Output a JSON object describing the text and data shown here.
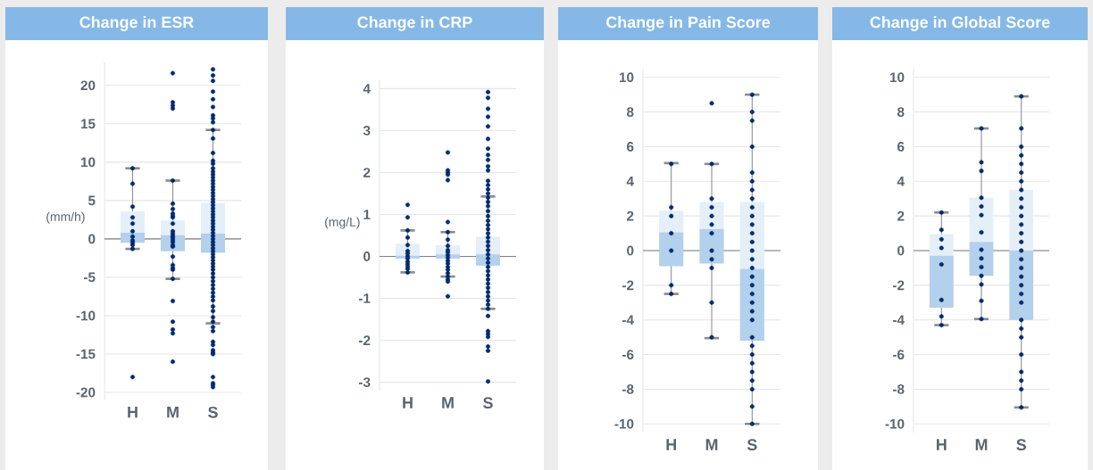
{
  "chart_data": [
    {
      "type": "box",
      "title": "Change in ESR",
      "ylabel": "(mm/h)",
      "categories": [
        "H",
        "M",
        "S"
      ],
      "color": "#b3d0ec",
      "grid": "y",
      "ylim": [
        -21,
        23
      ],
      "yticks": [
        -20,
        -15,
        -10,
        -5,
        0,
        5,
        10,
        15,
        20
      ],
      "boxes": [
        {
          "low": -1.3,
          "q1": -0.5,
          "median": 0.8,
          "q3": 3.6,
          "high": 9.2
        },
        {
          "low": -5.2,
          "q1": -1.6,
          "median": 0.5,
          "q3": 2.4,
          "high": 7.6
        },
        {
          "low": -11.0,
          "q1": -1.8,
          "median": 0.7,
          "q3": 4.7,
          "high": 14.2
        }
      ],
      "ref_lines": [
        {
          "axis": "y",
          "value": 0,
          "color": "#808080"
        }
      ],
      "series": [
        {
          "type": "scatter",
          "color": "#002b6e",
          "marker": "circle",
          "x": [
            "H",
            "H",
            "H",
            "H",
            "H",
            "H",
            "H",
            "H",
            "H",
            "H",
            "H",
            "H",
            "M",
            "M",
            "M",
            "M",
            "M",
            "M",
            "M",
            "M",
            "M",
            "M",
            "M",
            "M",
            "M",
            "M",
            "M",
            "M",
            "M",
            "M",
            "M",
            "M",
            "M",
            "M",
            "M",
            "M",
            "M",
            "M",
            "M",
            "M",
            "M",
            "S",
            "S",
            "S",
            "S",
            "S",
            "S",
            "S",
            "S",
            "S",
            "S",
            "S",
            "S",
            "S",
            "S",
            "S",
            "S",
            "S",
            "S",
            "S",
            "S",
            "S",
            "S",
            "S",
            "S",
            "S",
            "S",
            "S",
            "S",
            "S",
            "S",
            "S",
            "S",
            "S",
            "S",
            "S",
            "S",
            "S",
            "S",
            "S",
            "S",
            "S",
            "S",
            "S",
            "S",
            "S",
            "S",
            "S",
            "S",
            "S",
            "S",
            "S",
            "S",
            "S",
            "S",
            "S",
            "S",
            "S",
            "S",
            "S",
            "S",
            "S",
            "S",
            "S",
            "S",
            "S",
            "S",
            "S",
            "S",
            "S",
            "S",
            "S"
          ],
          "values": [
            9.2,
            7.2,
            4.2,
            2.8,
            2.0,
            1.0,
            0.3,
            -0.2,
            -0.5,
            -0.8,
            -1.3,
            -18.0,
            21.6,
            17.8,
            17.4,
            17.0,
            7.6,
            4.6,
            3.9,
            3.3,
            3.0,
            2.8,
            2.0,
            1.0,
            0.7,
            0.4,
            0.2,
            -0.1,
            -0.4,
            -0.8,
            -1.0,
            -2.3,
            -3.4,
            -3.8,
            -4.0,
            -5.2,
            -8.1,
            -10.8,
            -11.8,
            -12.3,
            -16.0,
            22.1,
            21.3,
            20.6,
            19.2,
            18.2,
            17.2,
            16.1,
            15.7,
            15.2,
            14.2,
            13.1,
            11.2,
            10.2,
            9.8,
            9.2,
            8.8,
            8.4,
            8.0,
            7.6,
            7.2,
            6.8,
            6.4,
            6.0,
            5.6,
            5.2,
            4.8,
            4.4,
            4.0,
            3.6,
            3.2,
            2.8,
            2.4,
            2.0,
            1.6,
            1.2,
            0.8,
            0.4,
            0.0,
            -0.4,
            -0.8,
            -1.2,
            -1.6,
            -2.0,
            -2.4,
            -2.8,
            -3.2,
            -3.6,
            -4.0,
            -4.5,
            -5.0,
            -5.5,
            -6.0,
            -6.5,
            -7.0,
            -7.5,
            -8.0,
            -8.8,
            -9.4,
            -10.2,
            -10.8,
            -11.5,
            -12.0,
            -13.4,
            -13.8,
            -14.5,
            -14.8,
            -15.0,
            -18.0,
            -18.8,
            -19.0,
            -19.3
          ]
        }
      ]
    },
    {
      "type": "box",
      "title": "Change in CRP",
      "ylabel": "(mg/L)",
      "categories": [
        "H",
        "M",
        "S"
      ],
      "color": "#b3d0ec",
      "grid": "y",
      "ylim": [
        -3.2,
        4.2
      ],
      "yticks": [
        -3,
        -2,
        -1,
        0,
        1,
        2,
        3,
        4
      ],
      "boxes": [
        {
          "low": -0.38,
          "q1": -0.05,
          "median": 0.02,
          "q3": 0.3,
          "high": 0.62
        },
        {
          "low": -0.48,
          "q1": -0.05,
          "median": 0.05,
          "q3": 0.27,
          "high": 0.58
        },
        {
          "low": -1.25,
          "q1": -0.22,
          "median": 0.05,
          "q3": 0.47,
          "high": 1.43
        }
      ],
      "ref_lines": [
        {
          "axis": "y",
          "value": 0,
          "color": "#808080"
        }
      ],
      "series": [
        {
          "type": "scatter",
          "color": "#002b6e",
          "marker": "circle",
          "x": [
            "H",
            "H",
            "H",
            "H",
            "H",
            "H",
            "H",
            "H",
            "H",
            "H",
            "H",
            "H",
            "H",
            "H",
            "M",
            "M",
            "M",
            "M",
            "M",
            "M",
            "M",
            "M",
            "M",
            "M",
            "M",
            "M",
            "M",
            "M",
            "M",
            "M",
            "M",
            "M",
            "M",
            "M",
            "M",
            "M",
            "S",
            "S",
            "S",
            "S",
            "S",
            "S",
            "S",
            "S",
            "S",
            "S",
            "S",
            "S",
            "S",
            "S",
            "S",
            "S",
            "S",
            "S",
            "S",
            "S",
            "S",
            "S",
            "S",
            "S",
            "S",
            "S",
            "S",
            "S",
            "S",
            "S",
            "S",
            "S",
            "S",
            "S",
            "S",
            "S",
            "S",
            "S",
            "S",
            "S",
            "S",
            "S",
            "S",
            "S",
            "S",
            "S",
            "S",
            "S",
            "S"
          ],
          "values": [
            1.23,
            0.93,
            0.62,
            0.45,
            0.27,
            0.13,
            0.07,
            0.0,
            -0.05,
            -0.12,
            -0.18,
            -0.24,
            -0.3,
            -0.38,
            2.48,
            2.05,
            2.0,
            1.95,
            1.82,
            0.82,
            0.58,
            0.4,
            0.25,
            0.15,
            0.1,
            0.03,
            -0.03,
            -0.1,
            -0.17,
            -0.25,
            -0.32,
            -0.4,
            -0.48,
            -0.55,
            -0.6,
            -0.95,
            3.92,
            3.78,
            3.52,
            3.33,
            3.1,
            2.8,
            2.57,
            2.42,
            2.3,
            2.15,
            2.05,
            1.8,
            1.7,
            1.6,
            1.5,
            1.4,
            1.3,
            1.2,
            1.08,
            0.96,
            0.85,
            0.75,
            0.65,
            0.55,
            0.45,
            0.35,
            0.25,
            0.15,
            0.05,
            -0.05,
            -0.15,
            -0.25,
            -0.35,
            -0.45,
            -0.55,
            -0.65,
            -0.75,
            -0.85,
            -0.95,
            -1.05,
            -1.15,
            -1.25,
            -1.42,
            -1.78,
            -1.85,
            -1.92,
            -2.15,
            -2.25,
            -2.98
          ]
        }
      ]
    },
    {
      "type": "box",
      "title": "Change in Pain Score",
      "categories": [
        "H",
        "M",
        "S"
      ],
      "color": "#b3d0ec",
      "grid": "y",
      "ylim": [
        -10.5,
        10.5
      ],
      "yticks": [
        -10,
        -8,
        -6,
        -4,
        -2,
        0,
        2,
        4,
        6,
        8,
        10
      ],
      "boxes": [
        {
          "low": -2.5,
          "q1": -0.9,
          "median": 1.05,
          "q3": 2.3,
          "high": 5.05
        },
        {
          "low": -5.05,
          "q1": -0.75,
          "median": 1.25,
          "q3": 2.8,
          "high": 5.0
        },
        {
          "low": -10.0,
          "q1": -5.2,
          "median": -1.05,
          "q3": 2.8,
          "high": 9.0
        }
      ],
      "ref_lines": [
        {
          "axis": "y",
          "value": 0,
          "color": "#808080"
        }
      ],
      "series": [
        {
          "type": "scatter",
          "color": "#002b6e",
          "marker": "circle",
          "x": [
            "H",
            "H",
            "H",
            "H",
            "H",
            "H",
            "H",
            "M",
            "M",
            "M",
            "M",
            "M",
            "M",
            "M",
            "M",
            "M",
            "M",
            "M",
            "M",
            "S",
            "S",
            "S",
            "S",
            "S",
            "S",
            "S",
            "S",
            "S",
            "S",
            "S",
            "S",
            "S",
            "S",
            "S",
            "S",
            "S",
            "S",
            "S",
            "S",
            "S",
            "S",
            "S",
            "S",
            "S",
            "S",
            "S",
            "S",
            "S",
            "S",
            "S"
          ],
          "values": [
            5.0,
            2.5,
            2.0,
            1.0,
            0.0,
            -2.0,
            -2.5,
            8.5,
            5.0,
            3.0,
            2.5,
            2.0,
            1.5,
            1.0,
            0.0,
            -0.5,
            -1.0,
            -3.0,
            -5.0,
            9.0,
            8.0,
            7.5,
            6.0,
            4.5,
            4.0,
            3.5,
            3.0,
            2.5,
            2.0,
            1.5,
            1.0,
            0.5,
            0.0,
            -0.5,
            -1.0,
            -1.5,
            -2.0,
            -2.5,
            -3.0,
            -3.5,
            -4.0,
            -5.0,
            -5.5,
            -6.0,
            -6.5,
            -7.0,
            -7.5,
            -8.0,
            -9.0,
            -10.0
          ]
        }
      ]
    },
    {
      "type": "box",
      "title": "Change in Global Score",
      "categories": [
        "H",
        "M",
        "S"
      ],
      "color": "#b3d0ec",
      "grid": "y",
      "ylim": [
        -10.5,
        10.5
      ],
      "yticks": [
        -10,
        -8,
        -6,
        -4,
        -2,
        0,
        2,
        4,
        6,
        8,
        10
      ],
      "boxes": [
        {
          "low": -4.3,
          "q1": -3.3,
          "median": -0.3,
          "q3": 0.95,
          "high": 2.2
        },
        {
          "low": -3.95,
          "q1": -1.45,
          "median": 0.5,
          "q3": 3.05,
          "high": 7.05
        },
        {
          "low": -9.05,
          "q1": -4.0,
          "median": 0.0,
          "q3": 3.5,
          "high": 8.9
        }
      ],
      "ref_lines": [
        {
          "axis": "y",
          "value": 0,
          "color": "#808080"
        }
      ],
      "series": [
        {
          "type": "scatter",
          "color": "#002b6e",
          "marker": "circle",
          "x": [
            "H",
            "H",
            "H",
            "H",
            "H",
            "H",
            "H",
            "H",
            "M",
            "M",
            "M",
            "M",
            "M",
            "M",
            "M",
            "M",
            "M",
            "M",
            "M",
            "M",
            "M",
            "M",
            "S",
            "S",
            "S",
            "S",
            "S",
            "S",
            "S",
            "S",
            "S",
            "S",
            "S",
            "S",
            "S",
            "S",
            "S",
            "S",
            "S",
            "S",
            "S",
            "S",
            "S",
            "S",
            "S",
            "S",
            "S",
            "S",
            "S",
            "S",
            "S"
          ],
          "values": [
            2.2,
            1.2,
            0.65,
            0.15,
            -0.8,
            -2.85,
            -3.8,
            -4.3,
            7.05,
            5.1,
            4.6,
            3.05,
            2.55,
            2.05,
            1.05,
            0.05,
            -0.45,
            -0.95,
            -1.45,
            -1.95,
            -2.9,
            -3.95,
            8.9,
            7.05,
            6.0,
            5.5,
            5.0,
            4.5,
            4.0,
            3.5,
            3.0,
            2.5,
            2.0,
            1.5,
            1.0,
            0.5,
            0.0,
            -0.5,
            -1.0,
            -1.5,
            -2.0,
            -2.5,
            -3.0,
            -4.0,
            -4.5,
            -5.0,
            -6.0,
            -7.0,
            -7.5,
            -8.0,
            -9.05
          ]
        }
      ]
    }
  ]
}
